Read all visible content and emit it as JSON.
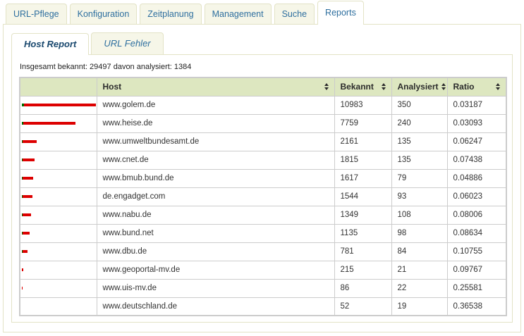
{
  "main_tabs": {
    "items": [
      {
        "label": "URL-Pflege",
        "active": false
      },
      {
        "label": "Konfiguration",
        "active": false
      },
      {
        "label": "Zeitplanung",
        "active": false
      },
      {
        "label": "Management",
        "active": false
      },
      {
        "label": "Suche",
        "active": false
      },
      {
        "label": "Reports",
        "active": true
      }
    ]
  },
  "sub_tabs": {
    "items": [
      {
        "label": "Host Report",
        "active": true
      },
      {
        "label": "URL Fehler",
        "active": false
      }
    ]
  },
  "summary": {
    "text": "Insgesamt bekannt: 29497 davon analysiert: 1384",
    "total_bekannt": 29497,
    "total_analysiert": 1384
  },
  "icons": {
    "sort": "up-down-triangles"
  },
  "colors": {
    "bar_bekannt_red": "#dd0000",
    "bar_analysiert_green": "#006f00",
    "header_bg": "#dde7c0",
    "tab_bg": "#f6f6e8",
    "tab_border": "#e3e3c6",
    "tab_text_blue": "#2e6f9f",
    "active_subtab_text": "#19486e",
    "table_border": "#cccccc"
  },
  "table": {
    "headers": [
      {
        "label": "",
        "sortable": false
      },
      {
        "label": "Host",
        "sortable": true
      },
      {
        "label": "Bekannt",
        "sortable": true
      },
      {
        "label": "Analysiert",
        "sortable": true
      },
      {
        "label": "Ratio",
        "sortable": true
      }
    ],
    "rows": [
      {
        "host": "www.golem.de",
        "bekannt": 10983,
        "analysiert": 350,
        "ratio": "0.03187"
      },
      {
        "host": "www.heise.de",
        "bekannt": 7759,
        "analysiert": 240,
        "ratio": "0.03093"
      },
      {
        "host": "www.umweltbundesamt.de",
        "bekannt": 2161,
        "analysiert": 135,
        "ratio": "0.06247"
      },
      {
        "host": "www.cnet.de",
        "bekannt": 1815,
        "analysiert": 135,
        "ratio": "0.07438"
      },
      {
        "host": "www.bmub.bund.de",
        "bekannt": 1617,
        "analysiert": 79,
        "ratio": "0.04886"
      },
      {
        "host": "de.engadget.com",
        "bekannt": 1544,
        "analysiert": 93,
        "ratio": "0.06023"
      },
      {
        "host": "www.nabu.de",
        "bekannt": 1349,
        "analysiert": 108,
        "ratio": "0.08006"
      },
      {
        "host": "www.bund.net",
        "bekannt": 1135,
        "analysiert": 98,
        "ratio": "0.08634"
      },
      {
        "host": "www.dbu.de",
        "bekannt": 781,
        "analysiert": 84,
        "ratio": "0.10755"
      },
      {
        "host": "www.geoportal-mv.de",
        "bekannt": 215,
        "analysiert": 21,
        "ratio": "0.09767"
      },
      {
        "host": "www.uis-mv.de",
        "bekannt": 86,
        "analysiert": 22,
        "ratio": "0.25581"
      },
      {
        "host": "www.deutschland.de",
        "bekannt": 52,
        "analysiert": 19,
        "ratio": "0.36538"
      }
    ]
  }
}
